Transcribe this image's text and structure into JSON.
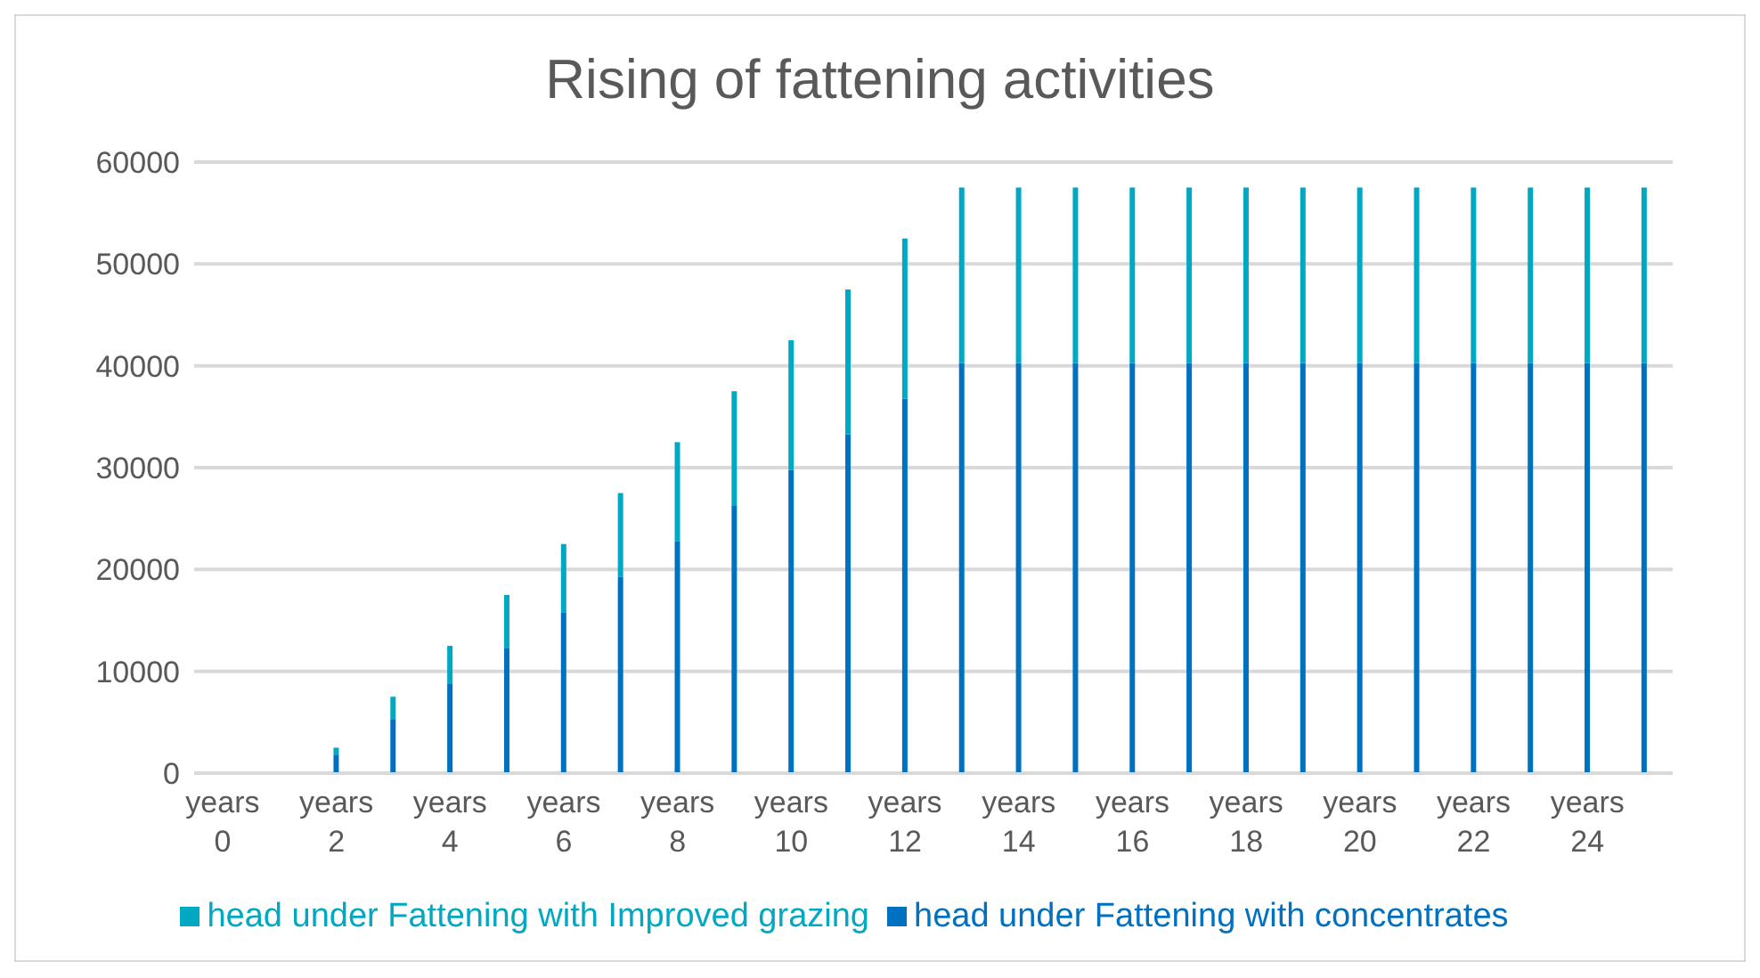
{
  "chart_data": {
    "type": "bar",
    "title": "Rising of fattening activities",
    "stacked": true,
    "categories": [
      "years 0",
      null,
      "years 2",
      null,
      "years 4",
      null,
      "years 6",
      null,
      "years 8",
      null,
      "years 10",
      null,
      "years 12",
      null,
      "years 14",
      null,
      "years 16",
      null,
      "years 18",
      null,
      "years 20",
      null,
      "years 22",
      null,
      "years 24",
      null
    ],
    "series": [
      {
        "name": "head under Fattening with concentrates",
        "color": "#0070c0",
        "values": [
          0,
          0,
          1750,
          5250,
          8750,
          12250,
          15750,
          19250,
          22750,
          26250,
          29750,
          33250,
          36750,
          40250,
          40250,
          40250,
          40250,
          40250,
          40250,
          40250,
          40250,
          40250,
          40250,
          40250,
          40250,
          40250
        ]
      },
      {
        "name": "head under Fattening with Improved grazing",
        "color": "#00a9c1",
        "values": [
          0,
          0,
          750,
          2250,
          3750,
          5250,
          6750,
          8250,
          9750,
          11250,
          12750,
          14250,
          15750,
          17250,
          17250,
          17250,
          17250,
          17250,
          17250,
          17250,
          17250,
          17250,
          17250,
          17250,
          17250,
          17250
        ]
      }
    ],
    "ylim": [
      0,
      60000
    ],
    "yticks": [
      0,
      10000,
      20000,
      30000,
      40000,
      50000,
      60000
    ],
    "grid": "y",
    "legend": "bottom"
  }
}
